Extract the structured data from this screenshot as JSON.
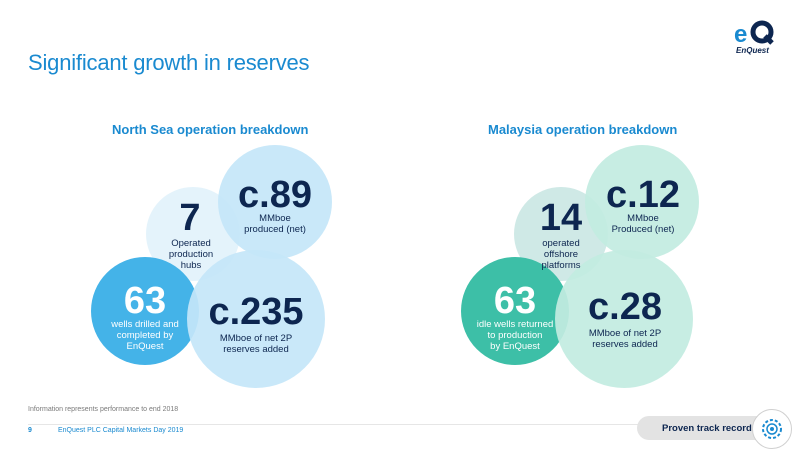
{
  "title": "Significant growth in reserves",
  "logo": {
    "mark": "eQ",
    "text": "EnQuest"
  },
  "north_sea": {
    "heading": "North Sea operation breakdown",
    "hubs_value": "7",
    "hubs_label": [
      "Operated",
      "production",
      "hubs"
    ],
    "produced_value": "c.89",
    "produced_label": [
      "MMboe",
      "produced (net)"
    ],
    "wells_value": "63",
    "wells_label": [
      "wells drilled and",
      "completed by",
      "EnQuest"
    ],
    "reserves_value": "c.235",
    "reserves_label": [
      "MMboe of net 2P",
      "reserves added"
    ]
  },
  "malaysia": {
    "heading": "Malaysia operation breakdown",
    "platforms_value": "14",
    "platforms_label": [
      "operated",
      "offshore",
      "platforms"
    ],
    "produced_value": "c.12",
    "produced_label": [
      "MMboe",
      "Produced (net)"
    ],
    "wells_value": "63",
    "wells_label": [
      "idle wells returned",
      "to production",
      "by EnQuest"
    ],
    "reserves_value": "c.28",
    "reserves_label": [
      "MMboe of net 2P",
      "reserves added"
    ]
  },
  "footnote": "Information represents performance to end 2018",
  "footer": {
    "page": "9",
    "event": "EnQuest PLC Capital Markets Day 2019"
  },
  "badge": {
    "label": "Proven track record",
    "icon": "gear-icon"
  },
  "colors": {
    "title_blue": "#1a8ad0",
    "navy": "#0d2650",
    "ns_light": "#e3f2fb",
    "ns_mid": "#c4e6f8",
    "ns_dark": "#44b3e8",
    "my_light": "#cfe9e6",
    "my_mid": "#c2ebe1",
    "my_dark": "#3dbfa7"
  }
}
